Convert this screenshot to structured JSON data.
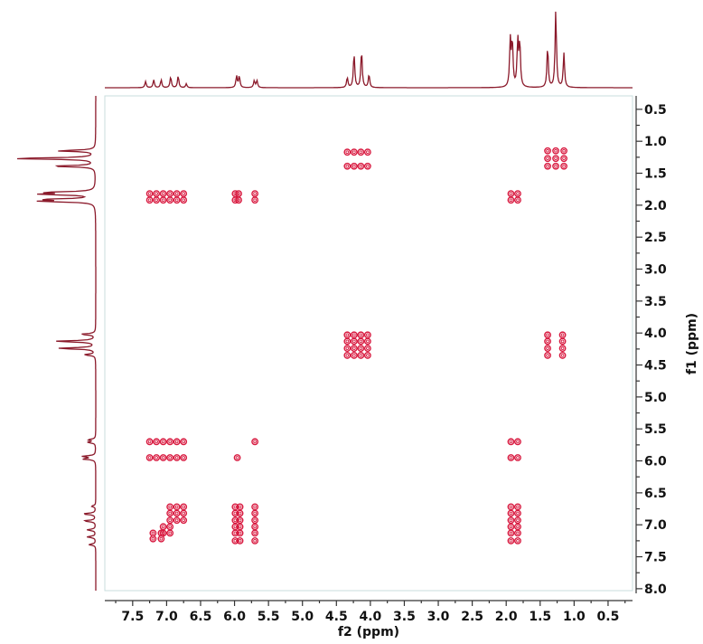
{
  "chart_data": {
    "type": "contour",
    "xlabel": "f2 (ppm)",
    "ylabel": "f1 (ppm)",
    "xlim": [
      7.91,
      0.14
    ],
    "ylim": [
      0.29,
      8.03
    ],
    "x_ticks": [
      "7.5",
      "7.0",
      "6.5",
      "6.0",
      "5.5",
      "5.0",
      "4.5",
      "4.0",
      "3.5",
      "3.0",
      "2.5",
      "2.0",
      "1.5",
      "1.0",
      "0.5"
    ],
    "y_ticks": [
      "0.5",
      "1.0",
      "1.5",
      "2.0",
      "2.5",
      "3.0",
      "3.5",
      "4.0",
      "4.5",
      "5.0",
      "5.5",
      "6.0",
      "6.5",
      "7.0",
      "7.5",
      "8.0"
    ],
    "grid": false,
    "colors": {
      "spectrum": "#8b1a2b",
      "contour": "#d8193f",
      "frame": "#c9dede"
    },
    "projection_peaks": [
      {
        "ppm": 7.31,
        "height": 0.08
      },
      {
        "ppm": 7.19,
        "height": 0.1
      },
      {
        "ppm": 7.08,
        "height": 0.1
      },
      {
        "ppm": 6.94,
        "height": 0.14
      },
      {
        "ppm": 6.83,
        "height": 0.15
      },
      {
        "ppm": 6.71,
        "height": 0.05
      },
      {
        "ppm": 5.97,
        "height": 0.15
      },
      {
        "ppm": 5.93,
        "height": 0.15
      },
      {
        "ppm": 5.71,
        "height": 0.09
      },
      {
        "ppm": 5.67,
        "height": 0.09
      },
      {
        "ppm": 4.34,
        "height": 0.13
      },
      {
        "ppm": 4.24,
        "height": 0.44
      },
      {
        "ppm": 4.13,
        "height": 0.48
      },
      {
        "ppm": 4.02,
        "height": 0.17
      },
      {
        "ppm": 1.94,
        "height": 0.6
      },
      {
        "ppm": 1.91,
        "height": 0.58
      },
      {
        "ppm": 1.83,
        "height": 0.6
      },
      {
        "ppm": 1.8,
        "height": 0.56
      },
      {
        "ppm": 1.39,
        "height": 0.52
      },
      {
        "ppm": 1.27,
        "height": 1.0
      },
      {
        "ppm": 1.15,
        "height": 0.44
      }
    ],
    "cross_peaks": [
      {
        "f2": [
          7.25,
          7.15,
          7.05,
          6.95,
          6.85,
          6.75
        ],
        "f1": [
          1.82,
          1.92
        ]
      },
      {
        "f2": [
          5.99,
          5.94
        ],
        "f1": [
          1.82,
          1.92
        ]
      },
      {
        "f2": [
          5.7
        ],
        "f1": [
          1.82,
          1.92
        ]
      },
      {
        "f2": [
          4.34,
          4.24,
          4.14,
          4.04
        ],
        "f1": [
          1.17,
          1.39
        ]
      },
      {
        "f2": [
          1.39,
          1.27,
          1.15
        ],
        "f1": [
          1.15,
          1.27,
          1.39
        ]
      },
      {
        "f2": [
          1.93,
          1.83
        ],
        "f1": [
          1.82,
          1.92
        ]
      },
      {
        "f2": [
          4.34,
          4.24,
          4.14,
          4.04
        ],
        "f1": [
          4.03,
          4.13,
          4.24,
          4.35
        ]
      },
      {
        "f2": [
          1.39,
          1.17
        ],
        "f1": [
          4.03,
          4.13,
          4.24,
          4.35
        ]
      },
      {
        "f2": [
          7.25,
          7.15,
          7.05,
          6.95,
          6.85,
          6.75
        ],
        "f1": [
          5.7,
          5.95
        ]
      },
      {
        "f2": [
          5.96
        ],
        "f1": [
          5.95
        ]
      },
      {
        "f2": [
          5.7
        ],
        "f1": [
          5.7
        ]
      },
      {
        "f2": [
          1.93,
          1.83
        ],
        "f1": [
          5.7,
          5.95
        ]
      },
      {
        "f2": [
          5.99,
          5.92,
          5.7
        ],
        "f1": [
          6.72,
          6.82,
          6.93,
          7.03,
          7.13,
          7.25
        ]
      },
      {
        "f2": [
          1.93,
          1.83
        ],
        "f1": [
          6.72,
          6.82,
          6.93,
          7.03,
          7.13,
          7.25
        ]
      },
      {
        "f2": [
          6.95,
          6.85,
          6.75
        ],
        "f1": [
          6.72,
          6.82,
          6.93
        ]
      },
      {
        "f2": [
          7.05,
          6.95
        ],
        "f1": [
          7.03,
          7.13
        ]
      },
      {
        "f2": [
          7.2,
          7.08
        ],
        "f1": [
          7.13,
          7.22
        ]
      }
    ]
  }
}
